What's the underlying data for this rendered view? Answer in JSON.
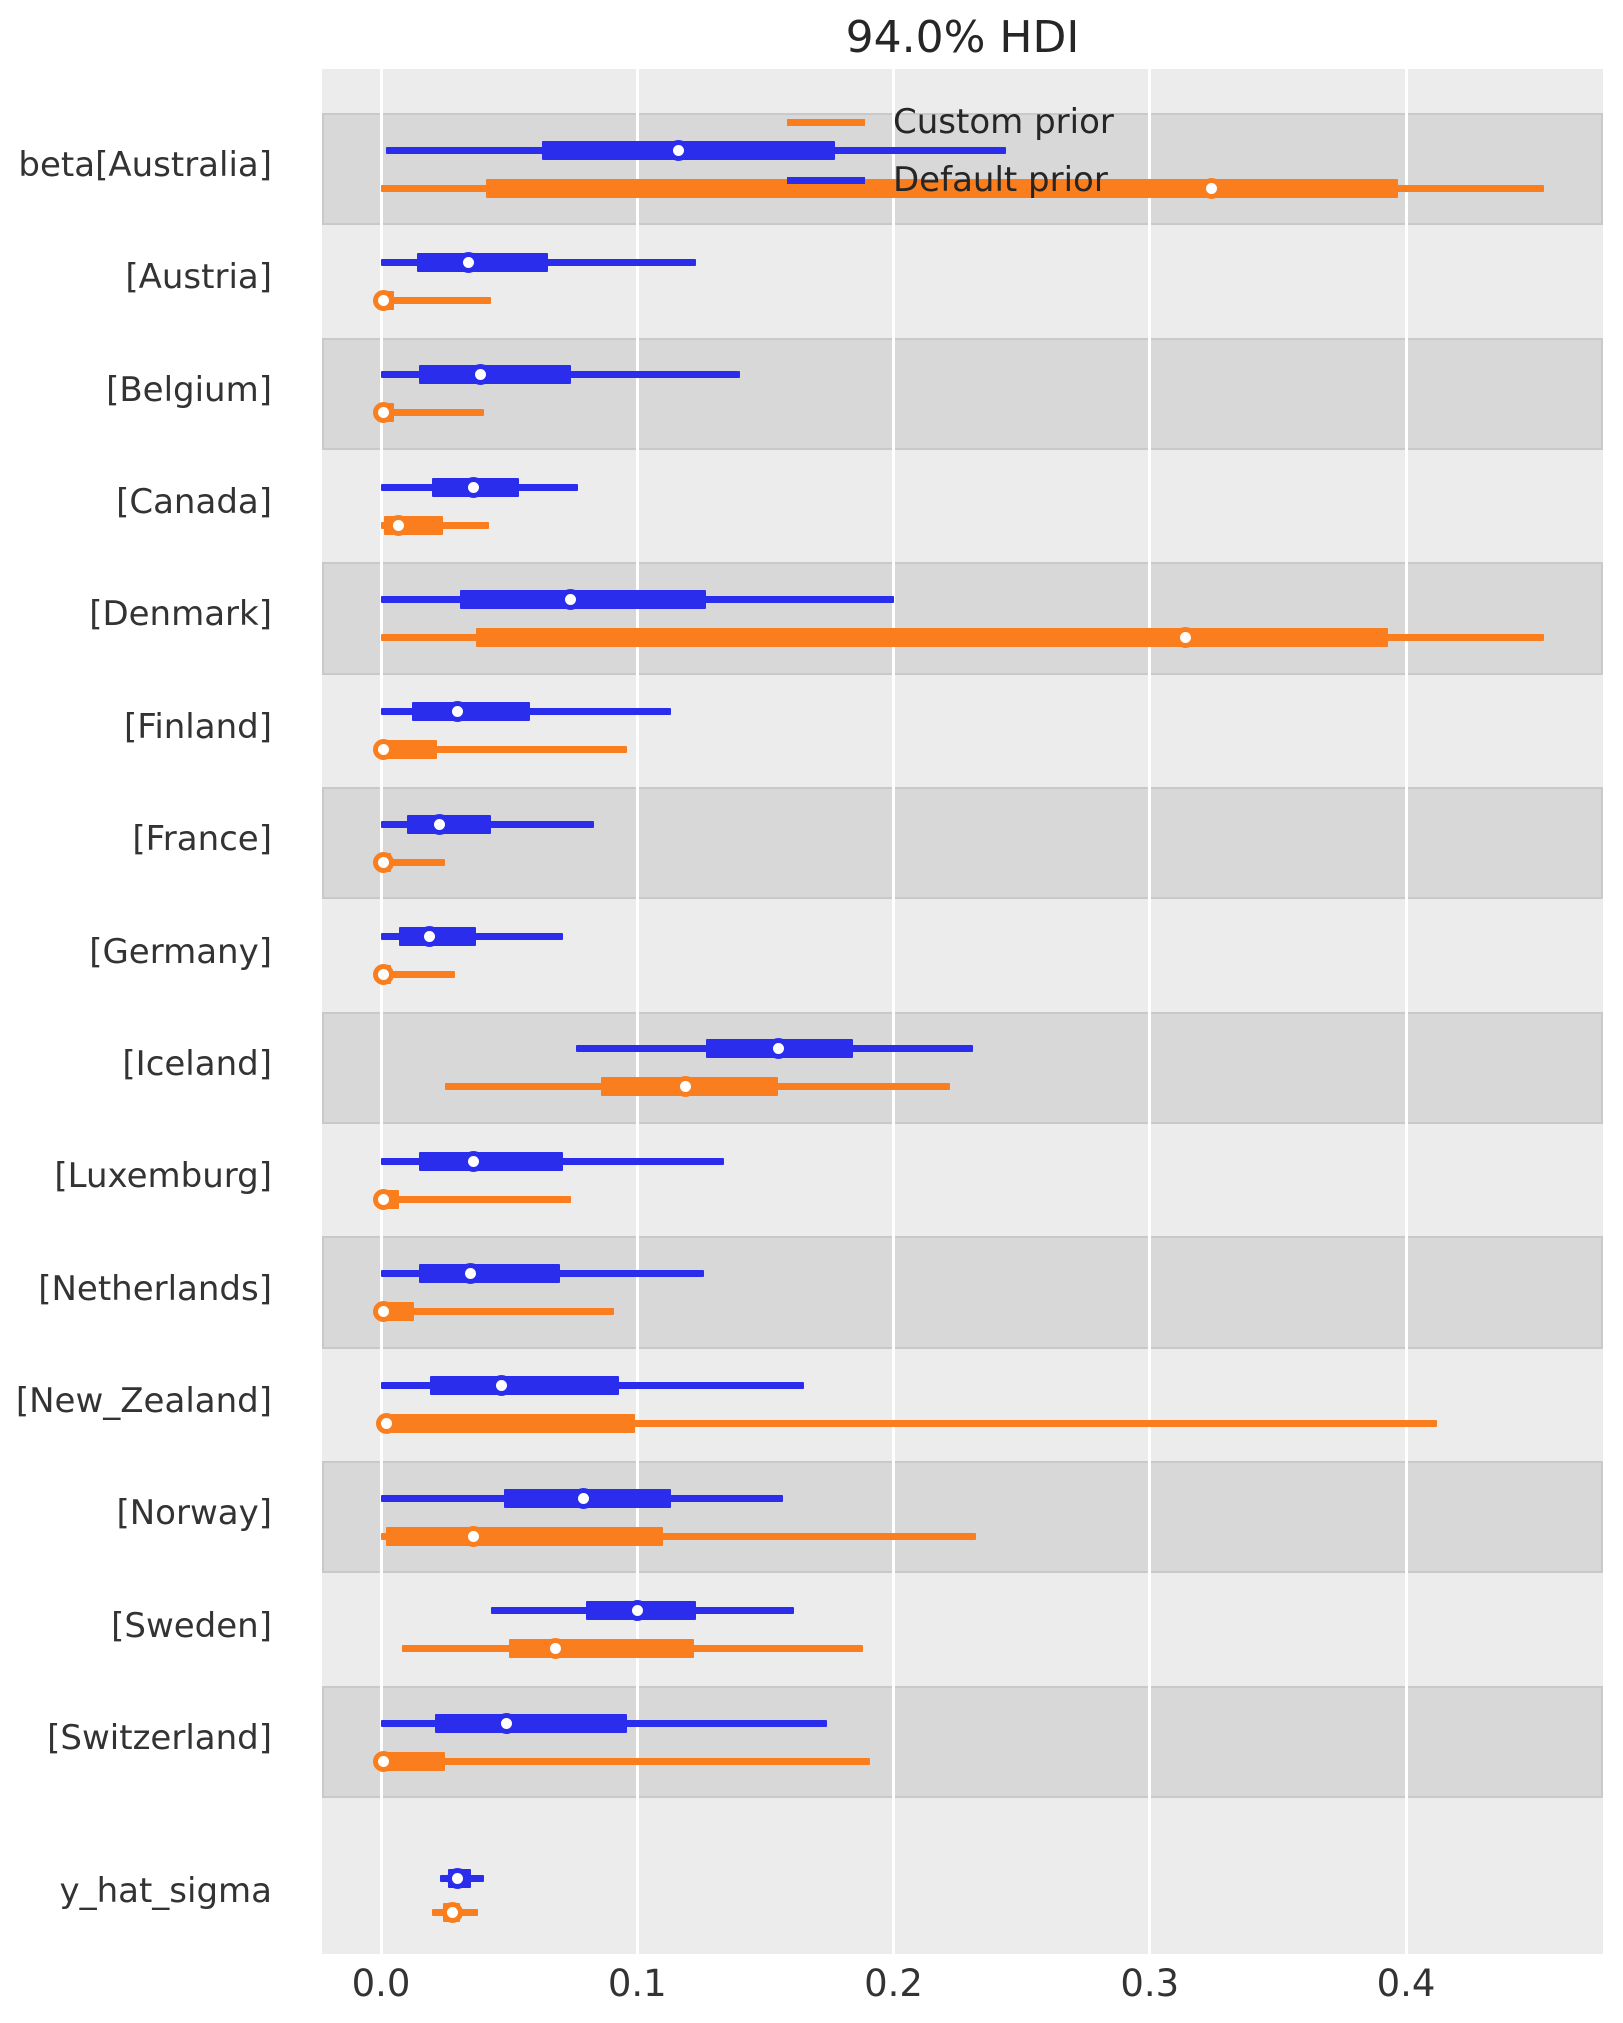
{
  "title": "94.0% HDI",
  "colors": {
    "custom_prior": "#fa7e1e",
    "default_prior": "#2a2eec",
    "plot_bg": "#ececec",
    "band": "#d8d8d8",
    "band_border": "#c9c9c9",
    "grid": "#ffffff",
    "text": "#262626"
  },
  "legend": {
    "items": [
      {
        "label": "Custom prior",
        "color_key": "custom_prior"
      },
      {
        "label": "Default prior",
        "color_key": "default_prior"
      }
    ]
  },
  "x_axis": {
    "tick_labels": [
      "0.0",
      "0.1",
      "0.2",
      "0.3",
      "0.4"
    ],
    "tick_values": [
      0.0,
      0.1,
      0.2,
      0.3,
      0.4
    ],
    "xlim": [
      -0.023,
      0.477
    ]
  },
  "chart_data": {
    "type": "forest",
    "title": "94.0% HDI",
    "hdi_probability": 0.94,
    "series_names": [
      "Custom prior",
      "Default prior"
    ],
    "legend_position": "upper center inside plot",
    "grid": "vertical white gridlines on gray background, alternating row shading",
    "rows": [
      {
        "label": "beta[Australia]",
        "default_prior": {
          "hdi": [
            0.002,
            0.244
          ],
          "iqr": [
            0.063,
            0.177
          ],
          "point": 0.116
        },
        "custom_prior": {
          "hdi": [
            0.0,
            0.454
          ],
          "iqr": [
            0.041,
            0.397
          ],
          "point": 0.324
        }
      },
      {
        "label": "[Austria]",
        "default_prior": {
          "hdi": [
            0.0,
            0.123
          ],
          "iqr": [
            0.014,
            0.065
          ],
          "point": 0.034
        },
        "custom_prior": {
          "hdi": [
            0.0,
            0.043
          ],
          "iqr": [
            0.0,
            0.005
          ],
          "point": 0.001
        }
      },
      {
        "label": "[Belgium]",
        "default_prior": {
          "hdi": [
            0.0,
            0.14
          ],
          "iqr": [
            0.015,
            0.074
          ],
          "point": 0.039
        },
        "custom_prior": {
          "hdi": [
            0.0,
            0.04
          ],
          "iqr": [
            0.0,
            0.005
          ],
          "point": 0.001
        }
      },
      {
        "label": "[Canada]",
        "default_prior": {
          "hdi": [
            0.0,
            0.077
          ],
          "iqr": [
            0.02,
            0.054
          ],
          "point": 0.036
        },
        "custom_prior": {
          "hdi": [
            0.0,
            0.042
          ],
          "iqr": [
            0.001,
            0.024
          ],
          "point": 0.007
        }
      },
      {
        "label": "[Denmark]",
        "default_prior": {
          "hdi": [
            0.0,
            0.2
          ],
          "iqr": [
            0.031,
            0.127
          ],
          "point": 0.074
        },
        "custom_prior": {
          "hdi": [
            0.0,
            0.454
          ],
          "iqr": [
            0.037,
            0.393
          ],
          "point": 0.314
        }
      },
      {
        "label": "[Finland]",
        "default_prior": {
          "hdi": [
            0.0,
            0.113
          ],
          "iqr": [
            0.012,
            0.058
          ],
          "point": 0.03
        },
        "custom_prior": {
          "hdi": [
            0.0,
            0.096
          ],
          "iqr": [
            0.002,
            0.022
          ],
          "point": 0.001
        }
      },
      {
        "label": "[France]",
        "default_prior": {
          "hdi": [
            0.0,
            0.083
          ],
          "iqr": [
            0.01,
            0.043
          ],
          "point": 0.023
        },
        "custom_prior": {
          "hdi": [
            0.0,
            0.025
          ],
          "iqr": [
            0.0,
            0.004
          ],
          "point": 0.001
        }
      },
      {
        "label": "[Germany]",
        "default_prior": {
          "hdi": [
            0.0,
            0.071
          ],
          "iqr": [
            0.007,
            0.037
          ],
          "point": 0.019
        },
        "custom_prior": {
          "hdi": [
            0.0,
            0.029
          ],
          "iqr": [
            0.0,
            0.004
          ],
          "point": 0.001
        }
      },
      {
        "label": "[Iceland]",
        "default_prior": {
          "hdi": [
            0.076,
            0.231
          ],
          "iqr": [
            0.127,
            0.184
          ],
          "point": 0.155
        },
        "custom_prior": {
          "hdi": [
            0.025,
            0.222
          ],
          "iqr": [
            0.086,
            0.155
          ],
          "point": 0.119
        }
      },
      {
        "label": "[Luxemburg]",
        "default_prior": {
          "hdi": [
            0.0,
            0.134
          ],
          "iqr": [
            0.015,
            0.071
          ],
          "point": 0.036
        },
        "custom_prior": {
          "hdi": [
            0.0,
            0.074
          ],
          "iqr": [
            0.002,
            0.007
          ],
          "point": 0.001
        }
      },
      {
        "label": "[Netherlands]",
        "default_prior": {
          "hdi": [
            0.0,
            0.126
          ],
          "iqr": [
            0.015,
            0.07
          ],
          "point": 0.035
        },
        "custom_prior": {
          "hdi": [
            0.0,
            0.091
          ],
          "iqr": [
            0.002,
            0.013
          ],
          "point": 0.001
        }
      },
      {
        "label": "[New_Zealand]",
        "default_prior": {
          "hdi": [
            0.0,
            0.165
          ],
          "iqr": [
            0.019,
            0.093
          ],
          "point": 0.047
        },
        "custom_prior": {
          "hdi": [
            0.001,
            0.412
          ],
          "iqr": [
            0.004,
            0.099
          ],
          "point": 0.002
        }
      },
      {
        "label": "[Norway]",
        "default_prior": {
          "hdi": [
            0.0,
            0.157
          ],
          "iqr": [
            0.048,
            0.113
          ],
          "point": 0.079
        },
        "custom_prior": {
          "hdi": [
            0.0,
            0.232
          ],
          "iqr": [
            0.002,
            0.11
          ],
          "point": 0.036
        }
      },
      {
        "label": "[Sweden]",
        "default_prior": {
          "hdi": [
            0.043,
            0.161
          ],
          "iqr": [
            0.08,
            0.123
          ],
          "point": 0.1
        },
        "custom_prior": {
          "hdi": [
            0.008,
            0.188
          ],
          "iqr": [
            0.05,
            0.122
          ],
          "point": 0.068
        }
      },
      {
        "label": "[Switzerland]",
        "default_prior": {
          "hdi": [
            0.0,
            0.174
          ],
          "iqr": [
            0.021,
            0.096
          ],
          "point": 0.049
        },
        "custom_prior": {
          "hdi": [
            0.0,
            0.191
          ],
          "iqr": [
            0.002,
            0.025
          ],
          "point": 0.001
        }
      },
      {
        "label": "y_hat_sigma",
        "default_prior": {
          "hdi": [
            0.023,
            0.04
          ],
          "iqr": [
            0.026,
            0.035
          ],
          "point": 0.03
        },
        "custom_prior": {
          "hdi": [
            0.02,
            0.038
          ],
          "iqr": [
            0.024,
            0.031
          ],
          "point": 0.028
        }
      }
    ]
  }
}
